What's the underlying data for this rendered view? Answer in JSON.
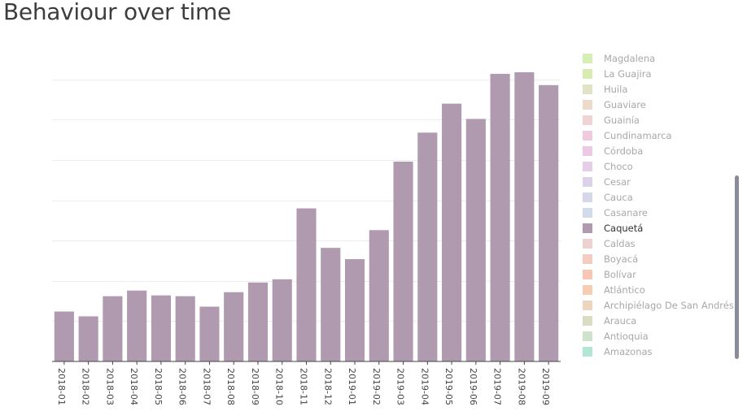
{
  "page": {
    "title": "Behaviour over time"
  },
  "chart_data": {
    "type": "bar",
    "title": "Behaviour over time",
    "categories": [
      "2018-01",
      "2018-02",
      "2018-03",
      "2018-04",
      "2018-05",
      "2018-06",
      "2018-07",
      "2018-08",
      "2018-09",
      "2018-10",
      "2018-11",
      "2018-12",
      "2019-01",
      "2019-02",
      "2019-03",
      "2019-04",
      "2019-05",
      "2019-06",
      "2019-07",
      "2019-08",
      "2019-09"
    ],
    "series": [
      {
        "values": [
          62,
          56,
          81,
          88,
          82,
          81,
          68,
          86,
          98,
          102,
          190,
          141,
          127,
          163,
          248,
          284,
          320,
          301,
          357,
          359,
          343
        ]
      }
    ],
    "ylim": [
      0,
      370
    ],
    "grid": true,
    "bar_color": "#b09ab0",
    "legend_position": "right"
  },
  "legend": {
    "items": [
      {
        "label": "Magdalena",
        "color": "#d6efb4",
        "active": false
      },
      {
        "label": "La Guajira",
        "color": "#d9eab2",
        "active": false
      },
      {
        "label": "Huila",
        "color": "#e2e2c4",
        "active": false
      },
      {
        "label": "Guaviare",
        "color": "#ecdacb",
        "active": false
      },
      {
        "label": "Guainía",
        "color": "#f0d3d3",
        "active": false
      },
      {
        "label": "Cundinamarca",
        "color": "#f0cade",
        "active": false
      },
      {
        "label": "Córdoba",
        "color": "#eccae4",
        "active": false
      },
      {
        "label": "Choco",
        "color": "#e6cde9",
        "active": false
      },
      {
        "label": "Cesar",
        "color": "#dcd2ea",
        "active": false
      },
      {
        "label": "Cauca",
        "color": "#d6d7ea",
        "active": false
      },
      {
        "label": "Casanare",
        "color": "#d2dbeb",
        "active": false
      },
      {
        "label": "Caquetá",
        "color": "#b09ab0",
        "active": true
      },
      {
        "label": "Caldas",
        "color": "#ecd2d0",
        "active": false
      },
      {
        "label": "Boyacá",
        "color": "#f3cdc2",
        "active": false
      },
      {
        "label": "Bolívar",
        "color": "#f7c6b5",
        "active": false
      },
      {
        "label": "Atlántico",
        "color": "#f6ccb3",
        "active": false
      },
      {
        "label": "Archipiélago De San Andrés",
        "color": "#ecd6c0",
        "active": false
      },
      {
        "label": "Arauca",
        "color": "#dcdcc4",
        "active": false
      },
      {
        "label": "Antioquia",
        "color": "#cfe3cc",
        "active": false
      },
      {
        "label": "Amazonas",
        "color": "#b4e6d8",
        "active": false
      }
    ]
  }
}
